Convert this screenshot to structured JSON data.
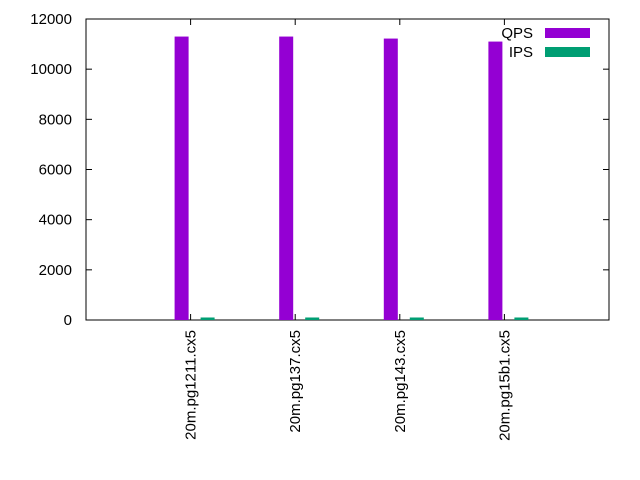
{
  "chart_data": {
    "type": "bar",
    "categories": [
      "20m.pg1211.cx5",
      "20m.pg137.cx5",
      "20m.pg143.cx5",
      "20m.pg15b1.cx5"
    ],
    "series": [
      {
        "name": "QPS",
        "color": "#9400d3",
        "values": [
          11300,
          11300,
          11220,
          11100
        ]
      },
      {
        "name": "IPS",
        "color": "#009e73",
        "values": [
          100,
          100,
          100,
          100
        ]
      }
    ],
    "ylim": [
      0,
      12000
    ],
    "yticks": [
      "0",
      "2000",
      "4000",
      "6000",
      "8000",
      "10000",
      "12000"
    ],
    "grid": false,
    "legend": "top-right",
    "title": "",
    "xlabel": "",
    "ylabel": ""
  }
}
